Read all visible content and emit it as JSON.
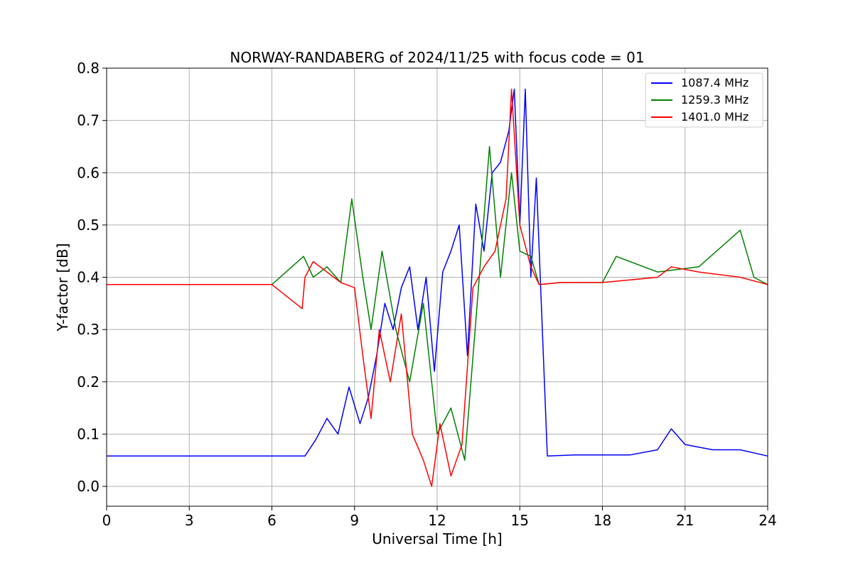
{
  "chart_data": {
    "type": "line",
    "title": "NORWAY-RANDABERG of 2024/11/25 with focus code = 01",
    "xlabel": "Universal Time [h]",
    "ylabel": "Y-factor [dB]",
    "xlim": [
      0,
      24
    ],
    "ylim": [
      -0.038,
      0.8
    ],
    "xticks": [
      0,
      3,
      6,
      9,
      12,
      15,
      18,
      21,
      24
    ],
    "yticks": [
      0.0,
      0.1,
      0.2,
      0.3,
      0.4,
      0.5,
      0.6,
      0.7,
      0.8
    ],
    "xtick_labels": [
      "0",
      "3",
      "6",
      "9",
      "12",
      "15",
      "18",
      "21",
      "24"
    ],
    "ytick_labels": [
      "0.0",
      "0.1",
      "0.2",
      "0.3",
      "0.4",
      "0.5",
      "0.6",
      "0.7",
      "0.8"
    ],
    "grid": true,
    "legend_position": "top-right",
    "series": [
      {
        "name": "1087.4 MHz",
        "color": "#0000ff",
        "x": [
          0,
          7.2,
          7.6,
          8.0,
          8.4,
          8.8,
          9.2,
          9.5,
          9.8,
          10.1,
          10.4,
          10.7,
          11.0,
          11.3,
          11.6,
          11.9,
          12.2,
          12.5,
          12.8,
          13.1,
          13.4,
          13.7,
          14.0,
          14.3,
          14.6,
          14.8,
          15.0,
          15.2,
          15.4,
          15.6,
          16.0,
          17.0,
          18.0,
          19.0,
          20.0,
          20.5,
          21.0,
          22.0,
          23.0,
          24.0
        ],
        "y": [
          0.058,
          0.058,
          0.09,
          0.13,
          0.1,
          0.19,
          0.12,
          0.17,
          0.25,
          0.35,
          0.3,
          0.38,
          0.42,
          0.3,
          0.4,
          0.22,
          0.41,
          0.45,
          0.5,
          0.25,
          0.54,
          0.45,
          0.6,
          0.62,
          0.68,
          0.76,
          0.5,
          0.76,
          0.4,
          0.59,
          0.058,
          0.06,
          0.06,
          0.06,
          0.07,
          0.11,
          0.08,
          0.07,
          0.07,
          0.058
        ]
      },
      {
        "name": "1259.3 MHz",
        "color": "#008000",
        "x": [
          0,
          3,
          6,
          7.15,
          7.5,
          8.0,
          8.5,
          8.9,
          9.3,
          9.6,
          10.0,
          10.5,
          11.0,
          11.5,
          12.0,
          12.5,
          13.0,
          13.5,
          13.9,
          14.3,
          14.7,
          15.0,
          15.4,
          15.7,
          16.5,
          18.0,
          18.5,
          20.0,
          21.5,
          23.0,
          23.5,
          24.0
        ],
        "y": [
          0.386,
          0.386,
          0.386,
          0.44,
          0.4,
          0.42,
          0.39,
          0.55,
          0.4,
          0.3,
          0.45,
          0.3,
          0.2,
          0.35,
          0.1,
          0.15,
          0.05,
          0.38,
          0.65,
          0.4,
          0.6,
          0.45,
          0.44,
          0.386,
          0.39,
          0.39,
          0.44,
          0.41,
          0.42,
          0.49,
          0.4,
          0.386
        ]
      },
      {
        "name": "1401.0 MHz",
        "color": "#ff0000",
        "x": [
          0,
          3,
          6,
          7.1,
          7.2,
          7.5,
          8.0,
          8.5,
          9.0,
          9.3,
          9.6,
          9.9,
          10.3,
          10.7,
          11.1,
          11.5,
          11.8,
          12.1,
          12.5,
          12.9,
          13.3,
          13.7,
          14.1,
          14.5,
          14.7,
          15.0,
          15.4,
          15.7,
          16.5,
          18.0,
          20.0,
          20.5,
          21.5,
          23.0,
          24.0
        ],
        "y": [
          0.386,
          0.386,
          0.386,
          0.34,
          0.4,
          0.43,
          0.41,
          0.39,
          0.38,
          0.25,
          0.13,
          0.3,
          0.2,
          0.33,
          0.1,
          0.05,
          0.0,
          0.12,
          0.02,
          0.08,
          0.38,
          0.42,
          0.45,
          0.55,
          0.76,
          0.5,
          0.42,
          0.386,
          0.39,
          0.39,
          0.4,
          0.42,
          0.41,
          0.4,
          0.386
        ]
      }
    ]
  }
}
